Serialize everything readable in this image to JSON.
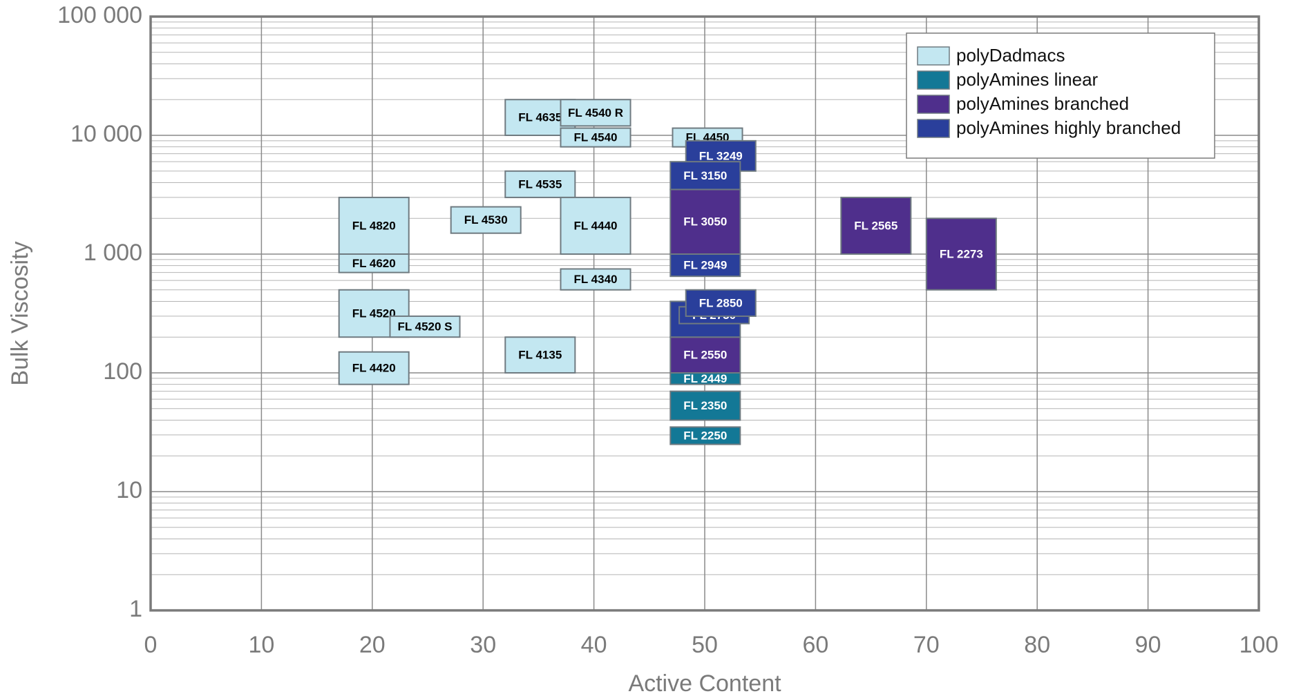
{
  "chart_data": {
    "type": "range_box",
    "x_label": "Active Content",
    "y_label": "Bulk Viscosity",
    "xlim": [
      0,
      100
    ],
    "xticks": [
      0,
      10,
      20,
      30,
      40,
      50,
      60,
      70,
      80,
      90,
      100
    ],
    "ylim": [
      1,
      100000
    ],
    "y_log": true,
    "yticks": [
      1,
      10,
      100,
      {
        "value": 1000,
        "label": "1 000"
      },
      {
        "value": 10000,
        "label": "10 000"
      },
      {
        "value": 100000,
        "label": "100 000"
      }
    ],
    "yminorticks": [
      2,
      3,
      4,
      5,
      6,
      7,
      8,
      9,
      20,
      30,
      40,
      50,
      60,
      70,
      80,
      90,
      200,
      300,
      400,
      500,
      600,
      700,
      800,
      900,
      2000,
      3000,
      4000,
      5000,
      6000,
      7000,
      8000,
      9000,
      20000,
      30000,
      40000,
      50000,
      60000,
      70000,
      80000,
      90000
    ],
    "grid": true,
    "legend": "upper right",
    "box_border": "#6f7a80",
    "series": [
      {
        "name": "polyDadmacs",
        "color": "#c3e7f1",
        "text_color": "#000000",
        "boxes": [
          {
            "label": "FL 4820",
            "x": [
              17,
              23.3
            ],
            "y": [
              1000,
              3000
            ]
          },
          {
            "label": "FL 4620",
            "x": [
              17,
              23.3
            ],
            "y": [
              700,
              1000
            ]
          },
          {
            "label": "FL 4520",
            "x": [
              17,
              23.3
            ],
            "y": [
              200,
              500
            ]
          },
          {
            "label": "FL 4520 S",
            "x": [
              21.6,
              27.9
            ],
            "y": [
              200,
              300
            ]
          },
          {
            "label": "FL 4420",
            "x": [
              17,
              23.3
            ],
            "y": [
              80,
              150
            ]
          },
          {
            "label": "FL 4530",
            "x": [
              27.1,
              33.4
            ],
            "y": [
              1500,
              2500
            ]
          },
          {
            "label": "FL 4635",
            "x": [
              32,
              38.3
            ],
            "y": [
              10000,
              20000
            ]
          },
          {
            "label": "FL 4540 R",
            "x": [
              37,
              43.3
            ],
            "y": [
              12000,
              20000
            ]
          },
          {
            "label": "FL 4540",
            "x": [
              37,
              43.3
            ],
            "y": [
              8000,
              11500
            ]
          },
          {
            "label": "FL 4535",
            "x": [
              32,
              38.3
            ],
            "y": [
              3000,
              5000
            ]
          },
          {
            "label": "FL 4440",
            "x": [
              37,
              43.3
            ],
            "y": [
              1000,
              3000
            ]
          },
          {
            "label": "FL 4340",
            "x": [
              37,
              43.3
            ],
            "y": [
              500,
              750
            ]
          },
          {
            "label": "FL 4135",
            "x": [
              32,
              38.3
            ],
            "y": [
              100,
              200
            ]
          },
          {
            "label": "FL 4450",
            "x": [
              47.1,
              53.4
            ],
            "y": [
              8000,
              11500
            ]
          }
        ]
      },
      {
        "name": "polyAmines linear",
        "color": "#137896",
        "text_color": "#ffffff",
        "boxes": [
          {
            "label": "FL 2449",
            "x": [
              46.9,
              53.2
            ],
            "y": [
              80,
              100
            ]
          },
          {
            "label": "FL 2350",
            "x": [
              46.9,
              53.2
            ],
            "y": [
              40,
              70
            ]
          },
          {
            "label": "FL 2250",
            "x": [
              46.9,
              53.2
            ],
            "y": [
              25,
              35
            ]
          }
        ]
      },
      {
        "name": "polyAmines branched",
        "color": "#4f2f8c",
        "text_color": "#ffffff",
        "boxes": [
          {
            "label": "FL 3050",
            "x": [
              46.9,
              53.2
            ],
            "y": [
              1000,
              3500
            ]
          },
          {
            "label": "FL 2550",
            "x": [
              46.9,
              53.2
            ],
            "y": [
              100,
              200
            ]
          },
          {
            "label": "FL 2565",
            "x": [
              62.3,
              68.6
            ],
            "y": [
              1000,
              3000
            ]
          },
          {
            "label": "FL 2273",
            "x": [
              70,
              76.3
            ],
            "y": [
              500,
              2000
            ]
          }
        ]
      },
      {
        "name": "polyAmines highly branched",
        "color": "#2a3f9b",
        "text_color": "#ffffff",
        "boxes": [
          {
            "label": "FL 3249",
            "x": [
              48.3,
              54.6
            ],
            "y": [
              5000,
              9000
            ]
          },
          {
            "label": "FL 3150",
            "x": [
              46.9,
              53.2
            ],
            "y": [
              3500,
              6000
            ]
          },
          {
            "label": "FL 2949",
            "x": [
              46.9,
              53.2
            ],
            "y": [
              650,
              1000
            ]
          },
          {
            "label": "FL 2650",
            "x": [
              46.9,
              53.2
            ],
            "y": [
              200,
              400
            ]
          },
          {
            "label": "FL 2750",
            "x": [
              47.7,
              54
            ],
            "y": [
              260,
              360
            ]
          },
          {
            "label": "FL 2850",
            "x": [
              48.3,
              54.6
            ],
            "y": [
              300,
              500
            ]
          }
        ]
      }
    ]
  }
}
